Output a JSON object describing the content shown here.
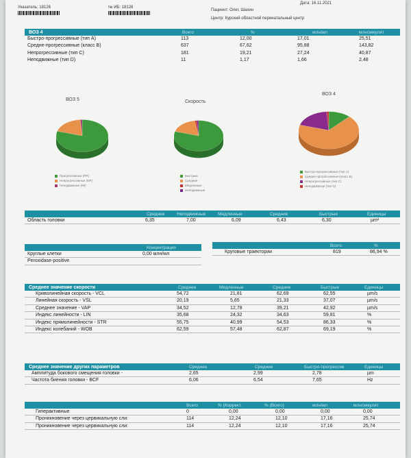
{
  "header": {
    "indicator_label": "Указатель: 18126",
    "no_label": "№ ИБ: 18126",
    "patient_label": "Пациент: Олег, Шахин",
    "center_label": "Центр: Курский областной перинатальный центр",
    "date_label": "Дата: 16.11.2021"
  },
  "who4_table": {
    "title": "ВОЗ 4",
    "columns": [
      "Всего",
      "%",
      "млн/мл",
      "млн/эякулят"
    ],
    "rows": [
      {
        "label": "Быстро-прогрессивные (тип A)",
        "total": "113",
        "percent": "12,00",
        "mln_ml": "17,01",
        "mln_ejac": "25,51"
      },
      {
        "label": "Средне-прогрессивные (класс B)",
        "total": "637",
        "percent": "67,62",
        "mln_ml": "95,88",
        "mln_ejac": "143,82"
      },
      {
        "label": "Непрогрессивные (тип C)",
        "total": "181",
        "percent": "19,21",
        "mln_ml": "27,24",
        "mln_ejac": "40,87"
      },
      {
        "label": "Неподвижные (тип D)",
        "total": "11",
        "percent": "1,17",
        "mln_ml": "1,66",
        "mln_ejac": "2,48"
      }
    ]
  },
  "chart_data": [
    {
      "type": "pie",
      "title": "ВОЗ 5",
      "series": [
        {
          "name": "Прогрессивные (PR)",
          "value": 79.62,
          "color": "#3c9a3c"
        },
        {
          "name": "Непрогрессивные (NP)",
          "value": 19.21,
          "color": "#e8914a"
        },
        {
          "name": "Неподвижные (IM)",
          "value": 1.17,
          "color": "#a33b6e"
        }
      ]
    },
    {
      "type": "pie",
      "title": "Скорость",
      "series": [
        {
          "name": "Быстрые",
          "value": 79.62,
          "color": "#3c9a3c"
        },
        {
          "name": "Средние",
          "value": 17.9,
          "color": "#e8914a"
        },
        {
          "name": "Медленные",
          "value": 1.3,
          "color": "#c83232"
        },
        {
          "name": "Неподвижные",
          "value": 1.17,
          "color": "#7a2a8a"
        }
      ]
    },
    {
      "type": "pie",
      "title": "ВОЗ 4",
      "series": [
        {
          "name": "Быстро-прогрессивные (тип A)",
          "value": 12.0,
          "color": "#3c9a3c"
        },
        {
          "name": "Средне-прогрессивные (класс B)",
          "value": 67.62,
          "color": "#e8914a"
        },
        {
          "name": "Непрогрессивные (тип C)",
          "value": 19.21,
          "color": "#8a2a8a"
        },
        {
          "name": "Неподвижные (тип D)",
          "value": 1.17,
          "color": "#c83232"
        }
      ]
    }
  ],
  "head_area": {
    "columns": [
      "Среднее",
      "Неподвижные",
      "Медленные",
      "Средние",
      "Быстрые",
      "Единицы"
    ],
    "label": "Область головки",
    "values": [
      "6,35",
      "7,00",
      "6,09",
      "6,43",
      "6,30",
      "µm²"
    ]
  },
  "concentration": {
    "header": "Концентрация",
    "rows": [
      {
        "label": "Круглые клетки",
        "value": "0,00 млн/мл"
      },
      {
        "label": "Peroxidase-positive",
        "value": ""
      }
    ]
  },
  "trajectories": {
    "columns": [
      "Всего",
      "%"
    ],
    "label": "Круговые траектории",
    "total": "819",
    "percent": "86,94 %"
  },
  "speed_table": {
    "title": "Среднее значение скорости",
    "columns": [
      "Среднее",
      "Медленные",
      "Средние",
      "Быстрые",
      "Единицы"
    ],
    "rows": [
      {
        "label": "Криволинейная скорость - VCL",
        "values": [
          "54,72",
          "21,81",
          "62,69",
          "62,55",
          "µm/s"
        ]
      },
      {
        "label": "Линейная скорость - VSL",
        "values": [
          "20,19",
          "5,65",
          "21,33",
          "37,07",
          "µm/s"
        ]
      },
      {
        "label": "Среднее значение - VAP",
        "values": [
          "34,52",
          "12,78",
          "39,21",
          "42,92",
          "µm/s"
        ]
      },
      {
        "label": "Индекс линейности - LIN",
        "values": [
          "35,68",
          "24,32",
          "34,63",
          "59,81",
          "%"
        ]
      },
      {
        "label": "Индекс прямолинейности - STR",
        "values": [
          "55,75",
          "40,99",
          "54,53",
          "86,33",
          "%"
        ]
      },
      {
        "label": "Индекс колебаний - WOB",
        "values": [
          "62,59",
          "57,48",
          "62,87",
          "69,19",
          "%"
        ]
      }
    ]
  },
  "other_params": {
    "title": "Среднее значение других параметров",
    "columns": [
      "Среднее",
      "Средние",
      "Быстро-прогрессив",
      "Единицы"
    ],
    "rows": [
      {
        "label": "Амплитуда бокового смещения головки -",
        "values": [
          "2,65",
          "2,99",
          "2,78",
          "µm"
        ]
      },
      {
        "label": "Частота биения головки - BCF",
        "values": [
          "6,06",
          "6,54",
          "7,65",
          "Hz"
        ]
      }
    ]
  },
  "bottom_table": {
    "columns": [
      "Всего",
      "% (Коррект.",
      "% (Всего)",
      "млн/мл",
      "млн/эякулят"
    ],
    "rows": [
      {
        "label": "Гиперактивные",
        "values": [
          "0",
          "0,00",
          "0,00",
          "0,00",
          "0,00"
        ]
      },
      {
        "label": "Проникновение через цервикальную сли:",
        "values": [
          "114",
          "12,24",
          "12,10",
          "17,16",
          "25,74"
        ]
      },
      {
        "label": "Проникновение через цервикальную сли:",
        "values": [
          "114",
          "12,24",
          "12,10",
          "17,16",
          "25,74"
        ]
      }
    ]
  }
}
